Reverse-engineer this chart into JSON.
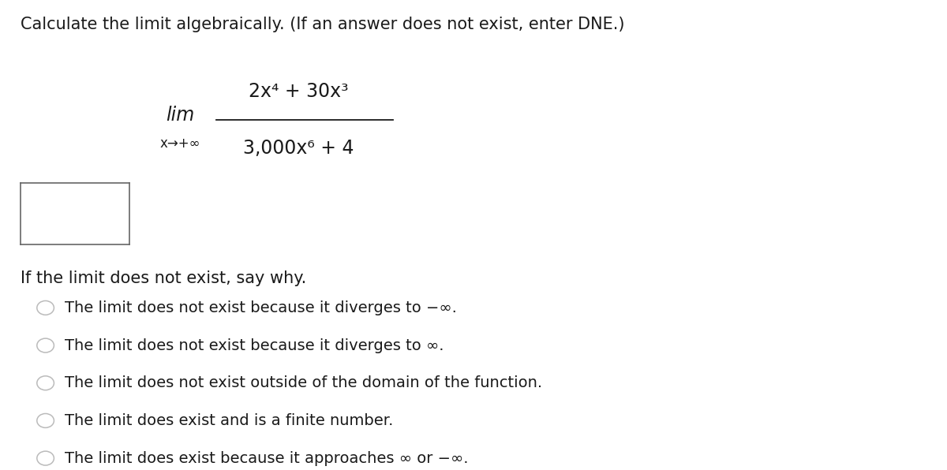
{
  "background_color": "#ffffff",
  "font_color": "#1a1a1a",
  "title_text": "Calculate the limit algebraically. (If an answer does not exist, enter DNE.)",
  "lim_label": "lim",
  "subscript": "x→+∞",
  "numerator": "2x⁴ + 30x³",
  "denominator": "3,000x⁶ + 4",
  "section_label": "If the limit does not exist, say why.",
  "options": [
    "The limit does not exist because it diverges to −∞.",
    "The limit does not exist because it diverges to ∞.",
    "The limit does not exist outside of the domain of the function.",
    "The limit does exist and is a finite number.",
    "The limit does exist because it approaches ∞ or −∞."
  ],
  "title_fontsize": 15,
  "math_fontsize": 17,
  "sub_fontsize": 12,
  "section_fontsize": 15,
  "option_fontsize": 14,
  "circle_color": "#bbbbbb"
}
